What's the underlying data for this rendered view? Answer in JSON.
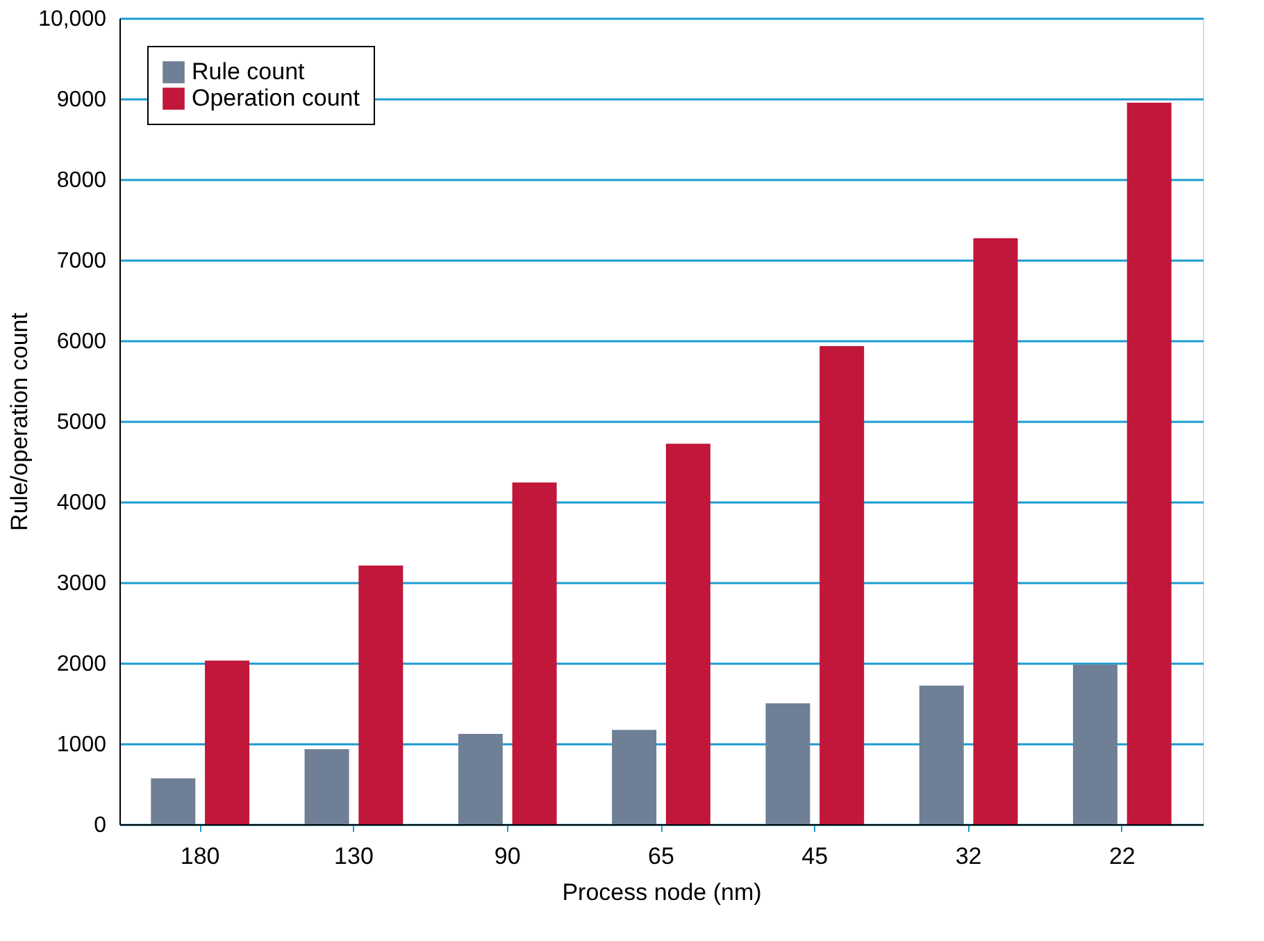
{
  "chart_data": {
    "type": "bar",
    "xlabel": "Process node (nm)",
    "ylabel": "Rule/operation count",
    "categories": [
      "180",
      "130",
      "90",
      "65",
      "45",
      "32",
      "22"
    ],
    "series": [
      {
        "name": "Rule count",
        "color": "#6f7f95",
        "values": [
          570,
          930,
          1120,
          1170,
          1500,
          1720,
          1980
        ]
      },
      {
        "name": "Operation count",
        "color": "#c0173a",
        "values": [
          2030,
          3210,
          4240,
          4720,
          5930,
          7270,
          8950
        ]
      }
    ],
    "ylim": [
      0,
      10000
    ],
    "yticks": [
      0,
      1000,
      2000,
      3000,
      4000,
      5000,
      6000,
      7000,
      8000,
      9000,
      {
        "value": 10000,
        "label": "10,000"
      }
    ],
    "grid": "y",
    "legend": "top left"
  }
}
